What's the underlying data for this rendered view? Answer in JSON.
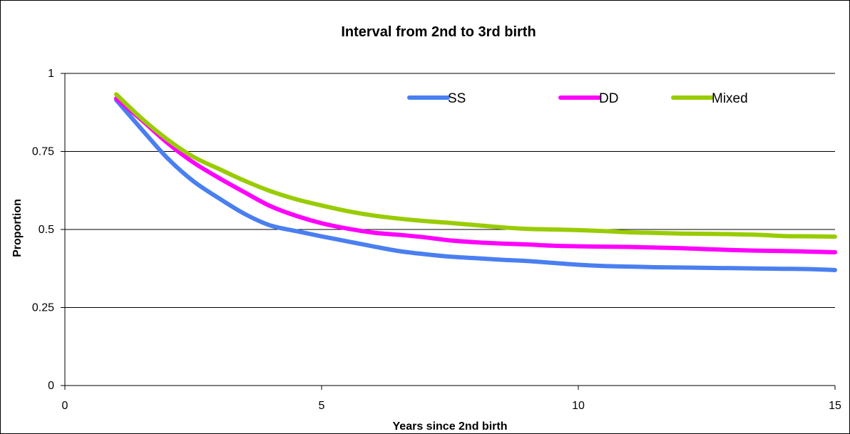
{
  "chart_data": {
    "type": "line",
    "title": "Interval from 2nd to 3rd birth",
    "xlabel": "Years since 2nd birth",
    "ylabel": "Proportion",
    "xlim": [
      0,
      15
    ],
    "ylim": [
      0,
      1
    ],
    "xticks": [
      0,
      5,
      10,
      15
    ],
    "yticks": [
      0,
      0.25,
      0.5,
      0.75,
      1
    ],
    "xtick_labels": [
      "0",
      "5",
      "10",
      "15"
    ],
    "ytick_labels": [
      "0",
      "0.25",
      "0.5",
      "0.75",
      "1"
    ],
    "grid": "horizontal",
    "legend": "top-right",
    "series": [
      {
        "name": "SS",
        "color": "#4a7ff0",
        "x": [
          1,
          1.5,
          2,
          2.5,
          3,
          3.5,
          4,
          4.5,
          5,
          5.5,
          6,
          6.5,
          7,
          7.5,
          8,
          8.5,
          9,
          9.5,
          10,
          10.5,
          11,
          11.5,
          12,
          12.5,
          13,
          13.5,
          14,
          14.5,
          15
        ],
        "values": [
          0.915,
          0.82,
          0.728,
          0.655,
          0.6,
          0.55,
          0.513,
          0.495,
          0.478,
          0.462,
          0.446,
          0.431,
          0.421,
          0.413,
          0.408,
          0.403,
          0.399,
          0.393,
          0.387,
          0.383,
          0.381,
          0.379,
          0.378,
          0.377,
          0.376,
          0.375,
          0.374,
          0.373,
          0.37
        ]
      },
      {
        "name": "DD",
        "color": "#ff00ff",
        "x": [
          1,
          1.5,
          2,
          2.5,
          3,
          3.5,
          4,
          4.5,
          5,
          5.5,
          6,
          6.5,
          7,
          7.5,
          8,
          8.5,
          9,
          9.5,
          10,
          10.5,
          11,
          11.5,
          12,
          12.5,
          13,
          13.5,
          14,
          14.5,
          15
        ],
        "values": [
          0.92,
          0.85,
          0.777,
          0.715,
          0.665,
          0.619,
          0.575,
          0.544,
          0.52,
          0.503,
          0.49,
          0.483,
          0.475,
          0.465,
          0.459,
          0.455,
          0.452,
          0.448,
          0.446,
          0.445,
          0.444,
          0.442,
          0.44,
          0.437,
          0.434,
          0.432,
          0.431,
          0.429,
          0.427
        ]
      },
      {
        "name": "Mixed",
        "color": "#99cc00",
        "x": [
          1,
          1.5,
          2,
          2.5,
          3,
          3.5,
          4,
          4.5,
          5,
          5.5,
          6,
          6.5,
          7,
          7.5,
          8,
          8.5,
          9,
          9.5,
          10,
          10.5,
          11,
          11.5,
          12,
          12.5,
          13,
          13.5,
          14,
          14.5,
          15
        ],
        "values": [
          0.933,
          0.855,
          0.788,
          0.733,
          0.694,
          0.656,
          0.623,
          0.597,
          0.577,
          0.559,
          0.545,
          0.535,
          0.527,
          0.521,
          0.514,
          0.507,
          0.502,
          0.5,
          0.498,
          0.495,
          0.491,
          0.489,
          0.487,
          0.486,
          0.485,
          0.483,
          0.479,
          0.478,
          0.477
        ]
      }
    ]
  }
}
